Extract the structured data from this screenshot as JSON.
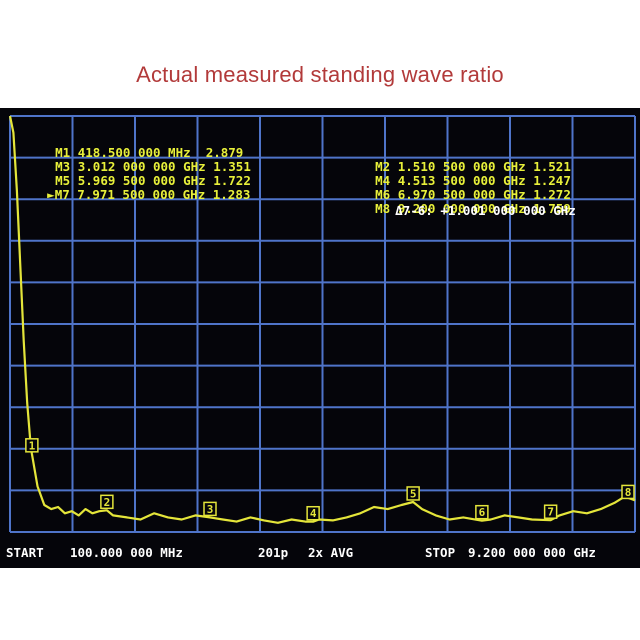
{
  "page": {
    "title": "Actual measured standing wave ratio"
  },
  "markers": [
    {
      "id": "M1",
      "freq": "418.500 000 MHz",
      "swr": "2.879",
      "active": false
    },
    {
      "id": "M2",
      "freq": "1.510 500 000 GHz",
      "swr": "1.521",
      "active": false
    },
    {
      "id": "M3",
      "freq": "3.012 000 000 GHz",
      "swr": "1.351",
      "active": false
    },
    {
      "id": "M4",
      "freq": "4.513 500 000 GHz",
      "swr": "1.247",
      "active": false
    },
    {
      "id": "M5",
      "freq": "5.969 500 000 GHz",
      "swr": "1.722",
      "active": false
    },
    {
      "id": "M6",
      "freq": "6.970 500 000 GHz",
      "swr": "1.272",
      "active": false
    },
    {
      "id": "M7",
      "freq": "7.971 500 000 GHz",
      "swr": "1.283",
      "active": true
    },
    {
      "id": "M8",
      "freq": "9.200 000 000 GHz",
      "swr": "1.759",
      "active": false
    }
  ],
  "delta": {
    "label": "Δ7-6:",
    "value": "+1.001 000 000 GHz"
  },
  "status": {
    "start_label": "START",
    "start_value": "100.000 000 MHz",
    "points": "201p",
    "avg": "2x AVG",
    "stop_label": "STOP",
    "stop_value": "9.200 000 000 GHz"
  },
  "colors": {
    "grid": "#4f74c9",
    "trace": "#e4e53a",
    "marker_text": "#e8f03a",
    "background": "#05050a",
    "title": "#b23a3a"
  },
  "chart_data": {
    "type": "line",
    "title": "Actual measured standing wave ratio",
    "xlabel": "",
    "ylabel": "",
    "xlim": [
      0.1,
      9.2
    ],
    "ylim": [
      1.0,
      11.0
    ],
    "grid": true,
    "series": [
      {
        "x": [
          0.1,
          0.15,
          0.2,
          0.25,
          0.3,
          0.35,
          0.4,
          0.4185,
          0.5,
          0.6,
          0.7,
          0.8,
          0.9,
          1.0,
          1.1,
          1.2,
          1.3,
          1.4,
          1.5105,
          1.6,
          1.8,
          2.0,
          2.2,
          2.4,
          2.6,
          2.8,
          3.012,
          3.2,
          3.4,
          3.6,
          3.8,
          4.0,
          4.2,
          4.4,
          4.5135,
          4.6,
          4.8,
          5.0,
          5.2,
          5.4,
          5.6,
          5.8,
          5.9695,
          6.1,
          6.3,
          6.5,
          6.7,
          6.9705,
          7.1,
          7.3,
          7.5,
          7.7,
          7.9715,
          8.1,
          8.3,
          8.5,
          8.7,
          8.9,
          9.05,
          9.2
        ],
        "y": [
          11.0,
          10.6,
          9.2,
          7.4,
          5.6,
          4.1,
          3.1,
          2.879,
          2.1,
          1.65,
          1.55,
          1.6,
          1.45,
          1.5,
          1.4,
          1.55,
          1.45,
          1.5,
          1.521,
          1.4,
          1.35,
          1.3,
          1.45,
          1.35,
          1.3,
          1.4,
          1.351,
          1.3,
          1.25,
          1.35,
          1.28,
          1.22,
          1.3,
          1.25,
          1.247,
          1.3,
          1.28,
          1.35,
          1.45,
          1.6,
          1.55,
          1.65,
          1.722,
          1.55,
          1.4,
          1.3,
          1.35,
          1.272,
          1.3,
          1.4,
          1.35,
          1.3,
          1.283,
          1.4,
          1.5,
          1.45,
          1.55,
          1.7,
          1.85,
          1.759
        ]
      }
    ],
    "markers": [
      {
        "label": "1",
        "x": 0.4185,
        "y": 2.879
      },
      {
        "label": "2",
        "x": 1.5105,
        "y": 1.521
      },
      {
        "label": "3",
        "x": 3.012,
        "y": 1.351
      },
      {
        "label": "4",
        "x": 4.5135,
        "y": 1.247
      },
      {
        "label": "5",
        "x": 5.9695,
        "y": 1.722
      },
      {
        "label": "6",
        "x": 6.9705,
        "y": 1.272
      },
      {
        "label": "7",
        "x": 7.9715,
        "y": 1.283
      },
      {
        "label": "8",
        "x": 9.2,
        "y": 1.759
      }
    ]
  }
}
